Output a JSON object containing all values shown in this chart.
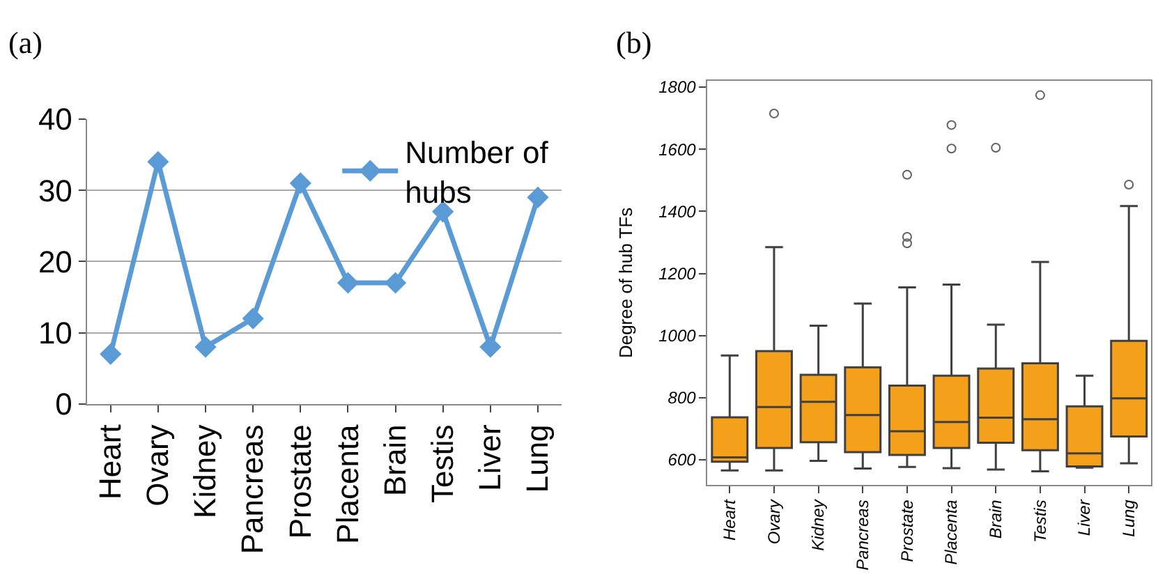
{
  "chart_data": [
    {
      "type": "line",
      "title": "(a)",
      "categories": [
        "Heart",
        "Ovary",
        "Kidney",
        "Pancreas",
        "Prostate",
        "Placenta",
        "Brain",
        "Testis",
        "Liver",
        "Lung"
      ],
      "series": [
        {
          "name": "Number of hubs",
          "color": "#5b9bd5",
          "values": [
            7,
            34,
            8,
            12,
            31,
            17,
            17,
            27,
            8,
            29
          ]
        }
      ],
      "ylim": [
        0,
        40
      ],
      "yticks": [
        0,
        10,
        20,
        30,
        40
      ],
      "grid": "y",
      "legend": "top right",
      "marker": "diamond",
      "line_style": "solid"
    },
    {
      "type": "box",
      "title": "(b)",
      "ylabel": "Degree of hub TFs",
      "categories": [
        "Heart",
        "Ovary",
        "Kidney",
        "Pancreas",
        "Prostate",
        "Placenta",
        "Brain",
        "Testis",
        "Liver",
        "Lung"
      ],
      "color": "#f5a01a",
      "boxes": [
        {
          "low": 566,
          "q1": 594,
          "median": 608,
          "q3": 737,
          "high": 936
        },
        {
          "low": 566,
          "q1": 638,
          "median": 770,
          "q3": 950,
          "high": 1285,
          "outliers": [
            1715
          ]
        },
        {
          "low": 597,
          "q1": 657,
          "median": 787,
          "q3": 874,
          "high": 1032
        },
        {
          "low": 572,
          "q1": 625,
          "median": 744,
          "q3": 898,
          "high": 1103
        },
        {
          "low": 577,
          "q1": 616,
          "median": 692,
          "q3": 839,
          "high": 1155,
          "outliers": [
            1518,
            1318,
            1297
          ]
        },
        {
          "low": 573,
          "q1": 638,
          "median": 722,
          "q3": 871,
          "high": 1164,
          "outliers": [
            1678,
            1602
          ]
        },
        {
          "low": 569,
          "q1": 655,
          "median": 736,
          "q3": 894,
          "high": 1035,
          "outliers": [
            1605
          ]
        },
        {
          "low": 563,
          "q1": 631,
          "median": 731,
          "q3": 911,
          "high": 1237,
          "outliers": [
            1774
          ]
        },
        {
          "low": 575,
          "q1": 579,
          "median": 621,
          "q3": 772,
          "high": 871
        },
        {
          "low": 589,
          "q1": 675,
          "median": 798,
          "q3": 983,
          "high": 1417,
          "outliers": [
            1486
          ]
        }
      ],
      "ylim": [
        520,
        1820
      ],
      "yticks": [
        600,
        800,
        1000,
        1200,
        1400,
        1600,
        1800
      ],
      "grid": false,
      "legend": false
    }
  ]
}
